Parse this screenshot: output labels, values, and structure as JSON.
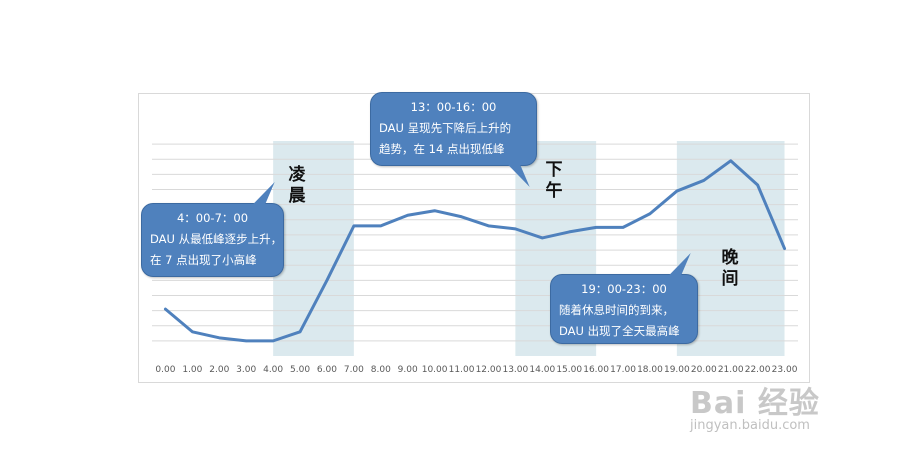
{
  "chart_data": {
    "type": "line",
    "title": "",
    "xlabel": "",
    "ylabel": "",
    "categories": [
      "0.00",
      "1.00",
      "2.00",
      "3.00",
      "4.00",
      "5.00",
      "6.00",
      "7.00",
      "8.00",
      "9.00",
      "10.00",
      "11.00",
      "12.00",
      "13.00",
      "14.00",
      "15.00",
      "16.00",
      "17.00",
      "18.00",
      "19.00",
      "20.00",
      "21.00",
      "22.00",
      "23.00"
    ],
    "values": [
      21,
      6,
      2,
      0,
      0,
      6,
      40,
      76,
      76,
      83,
      86,
      82,
      76,
      74,
      68,
      72,
      75,
      75,
      84,
      99,
      106,
      119,
      103,
      61
    ],
    "ylim": [
      -10,
      140
    ],
    "y_gridlines": [
      0,
      10,
      20,
      30,
      40,
      50,
      60,
      70,
      80,
      90,
      100,
      110,
      120,
      130
    ],
    "grid": true,
    "line_color": "#4f81bd",
    "band_color": "#dbe9ee",
    "grid_color": "#d9d9d9",
    "bands": [
      {
        "from": 4,
        "to": 7,
        "label": "凌晨"
      },
      {
        "from": 13,
        "to": 16,
        "label": "下午"
      },
      {
        "from": 19,
        "to": 23,
        "label": "晚间"
      }
    ],
    "callouts": [
      {
        "title": "4：00-7：00",
        "lines": [
          "DAU 从最低峰逐步上升，",
          "在 7 点出现了小高峰"
        ]
      },
      {
        "title": "13：00-16：00",
        "lines": [
          "DAU 呈现先下降后上升的",
          "趋势，在 14 点出现低峰"
        ]
      },
      {
        "title": "19：00-23：00",
        "lines": [
          "随着休息时间的到来，",
          "DAU 出现了全天最高峰"
        ]
      }
    ]
  },
  "watermark": {
    "logo_text": "Bai 经验",
    "url": "jingyan.baidu.com"
  }
}
